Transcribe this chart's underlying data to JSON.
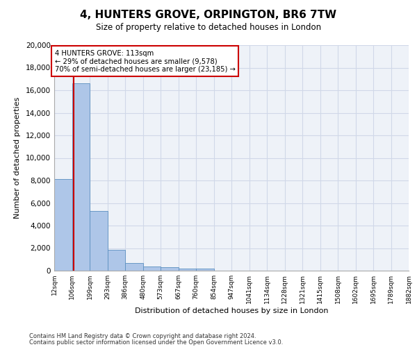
{
  "title_line1": "4, HUNTERS GROVE, ORPINGTON, BR6 7TW",
  "title_line2": "Size of property relative to detached houses in London",
  "xlabel": "Distribution of detached houses by size in London",
  "ylabel": "Number of detached properties",
  "footer_line1": "Contains HM Land Registry data © Crown copyright and database right 2024.",
  "footer_line2": "Contains public sector information licensed under the Open Government Licence v3.0.",
  "annotation_line1": "4 HUNTERS GROVE: 113sqm",
  "annotation_line2": "← 29% of detached houses are smaller (9,578)",
  "annotation_line3": "70% of semi-detached houses are larger (23,185) →",
  "property_size": 113,
  "bar_edges": [
    12,
    106,
    199,
    293,
    386,
    480,
    573,
    667,
    760,
    854,
    947,
    1041,
    1134,
    1228,
    1321,
    1415,
    1508,
    1602,
    1695,
    1789,
    1882
  ],
  "bar_heights": [
    8100,
    16600,
    5300,
    1850,
    700,
    380,
    280,
    210,
    170,
    0,
    0,
    0,
    0,
    0,
    0,
    0,
    0,
    0,
    0,
    0
  ],
  "bar_color": "#aec6e8",
  "bar_edge_color": "#5a8fc0",
  "vline_color": "#cc0000",
  "vline_x": 113,
  "ylim": [
    0,
    20000
  ],
  "yticks": [
    0,
    2000,
    4000,
    6000,
    8000,
    10000,
    12000,
    14000,
    16000,
    18000,
    20000
  ],
  "annotation_box_color": "#cc0000",
  "grid_color": "#d0d8e8",
  "background_color": "#eef2f8"
}
